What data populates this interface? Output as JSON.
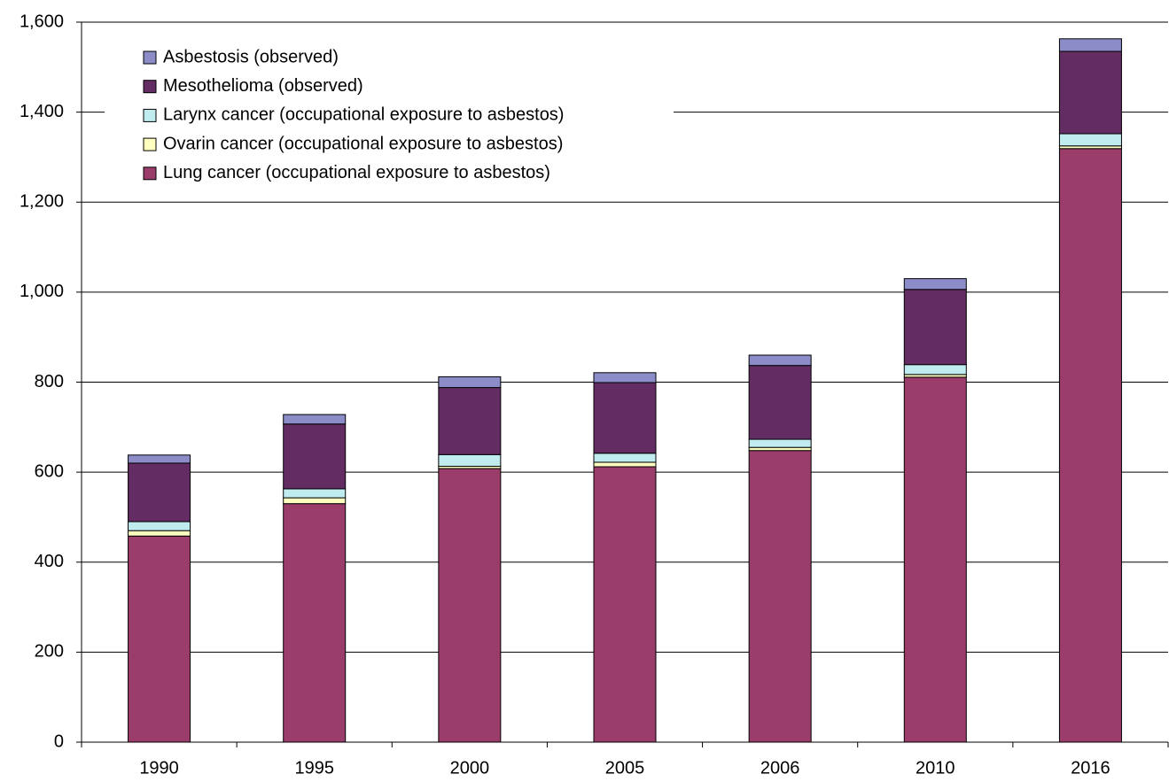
{
  "chart_data": {
    "type": "stacked_bar",
    "categories": [
      "1990",
      "1995",
      "2000",
      "2005",
      "2006",
      "2010",
      "2016"
    ],
    "series": [
      {
        "name": "Lung cancer (occupational exposure to asbestos)",
        "color": "#9b3d6b",
        "values": [
          458,
          530,
          608,
          612,
          648,
          811,
          1319
        ]
      },
      {
        "name": "Ovarin cancer (occupational exposure to asbestos)",
        "color": "#ffffc0",
        "values": [
          12,
          13,
          5,
          10,
          7,
          6,
          6
        ]
      },
      {
        "name": "Larynx cancer (occupational exposure to asbestos)",
        "color": "#c0ecf0",
        "values": [
          20,
          20,
          26,
          20,
          18,
          22,
          27
        ]
      },
      {
        "name": "Mesothelioma (observed)",
        "color": "#632c63",
        "values": [
          130,
          144,
          149,
          157,
          164,
          167,
          183
        ]
      },
      {
        "name": "Asbestosis (observed)",
        "color": "#8c8cc8",
        "values": [
          18,
          21,
          24,
          22,
          23,
          24,
          28
        ]
      }
    ],
    "ylim": [
      0,
      1600
    ],
    "yticks": [
      0,
      200,
      400,
      600,
      800,
      {
        "value": 1000,
        "label": "1,000"
      },
      {
        "value": 1200,
        "label": "1,200"
      },
      {
        "value": 1400,
        "label": "1,400"
      },
      {
        "value": 1600,
        "label": "1,600"
      }
    ],
    "grid": true,
    "legend": "upper-left"
  }
}
